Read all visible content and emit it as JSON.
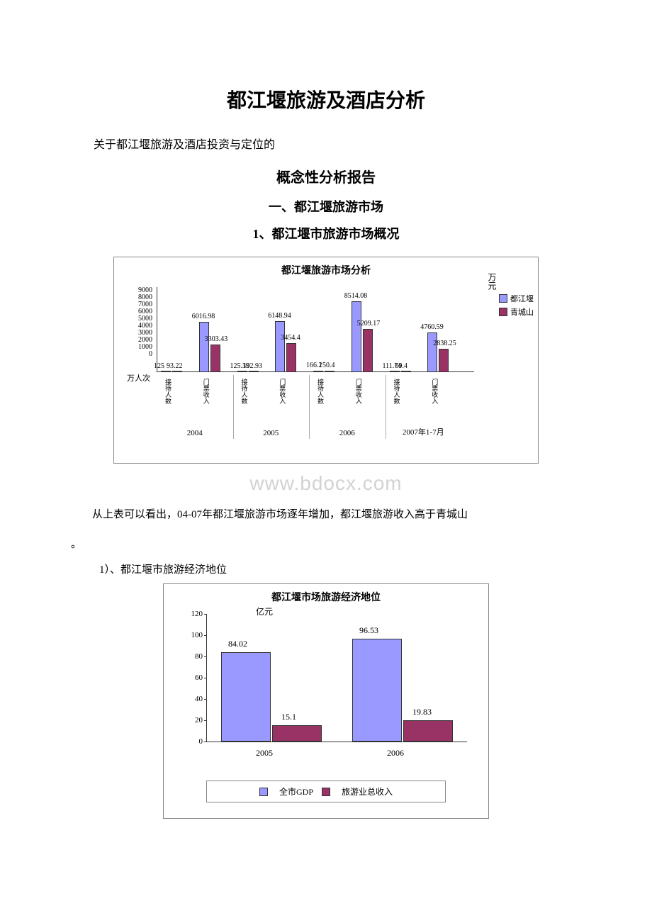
{
  "title": "都江堰旅游及酒店分析",
  "intro": "关于都江堰旅游及酒店投资与定位的",
  "subtitle": "概念性分析报告",
  "section1": "一、都江堰旅游市场",
  "subsection1": "1、都江堰市旅游市场概况",
  "chart1": {
    "title": "都江堰旅游市场分析",
    "ymax": 9000,
    "ylabels": [
      "9000",
      "8000",
      "7000",
      "6000",
      "5000",
      "4000",
      "3000",
      "2000",
      "1000",
      "0"
    ],
    "unit_right": "万元",
    "unit_left": "万人次",
    "categories": [
      "接待人数",
      "门票收入",
      "接待人数",
      "门票收入",
      "接待人数",
      "门票收入",
      "接待人数",
      "门票收入"
    ],
    "years": [
      "2004",
      "2005",
      "2006",
      "2007年1-7月"
    ],
    "legend": [
      "都江堰",
      "青城山"
    ],
    "series_a_color": "#9999ff",
    "series_b_color": "#993366",
    "data": [
      {
        "a": 125,
        "b": 93.22,
        "la": "125",
        "lb": "93.22"
      },
      {
        "a": 6016.98,
        "b": 3303.43,
        "la": "6016.98",
        "lb": "3303.43"
      },
      {
        "a": 125.39,
        "b": 102.93,
        "la": "125.39",
        "lb": "102.93"
      },
      {
        "a": 6148.94,
        "b": 3454.4,
        "la": "6148.94",
        "lb": "3454.4"
      },
      {
        "a": 166.2,
        "b": 150.4,
        "la": "166.2",
        "lb": "150.4"
      },
      {
        "a": 8514.08,
        "b": 5209.17,
        "la": "8514.08",
        "lb": "5209.17"
      },
      {
        "a": 111.74,
        "b": 69.4,
        "la": "111.74",
        "lb": "69.4"
      },
      {
        "a": 4760.59,
        "b": 2838.25,
        "la": "4760.59",
        "lb": "2838.25"
      }
    ]
  },
  "watermark": "www.bdocx.com",
  "body1": "从上表可以看出，04-07年都江堰旅游市场逐年增加，都江堰旅游收入高于青城山",
  "body1_end": "。",
  "subhead1": "1）、都江堰市旅游经济地位",
  "chart2": {
    "title": "都江堰市场旅游经济地位",
    "unit": "亿元",
    "ymax": 120,
    "ylabels": [
      0,
      20,
      40,
      60,
      80,
      100,
      120
    ],
    "categories": [
      "2005",
      "2006"
    ],
    "legend": [
      "全市GDP",
      "旅游业总收入"
    ],
    "series_a_color": "#9999ff",
    "series_b_color": "#993366",
    "data": [
      {
        "a": 84.02,
        "b": 15.1,
        "la": "84.02",
        "lb": "15.1"
      },
      {
        "a": 96.53,
        "b": 19.83,
        "la": "96.53",
        "lb": "19.83"
      }
    ]
  }
}
